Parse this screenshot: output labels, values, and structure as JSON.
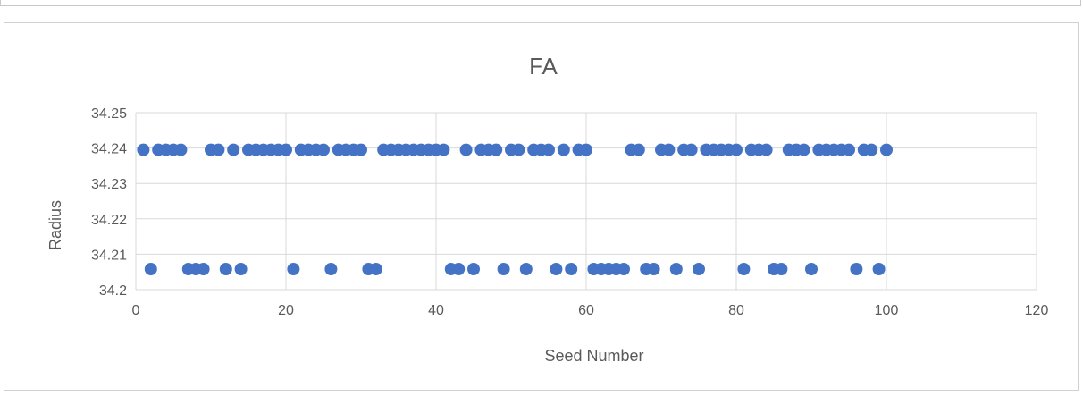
{
  "chart_data": {
    "type": "scatter",
    "title": "FA",
    "xlabel": "Seed Number",
    "ylabel": "Radius",
    "xlim": [
      0,
      120
    ],
    "ylim": [
      34.2,
      34.25
    ],
    "xticks": [
      0,
      20,
      40,
      60,
      80,
      100,
      120
    ],
    "yticks": [
      "34.2",
      "34.21",
      "34.22",
      "34.23",
      "34.24",
      "34.25"
    ],
    "grid": true,
    "legend": "none",
    "marker_color": "#4472C4",
    "series": [
      {
        "points": [
          [
            1,
            34.2395
          ],
          [
            2,
            34.2058
          ],
          [
            3,
            34.2395
          ],
          [
            4,
            34.2395
          ],
          [
            5,
            34.2395
          ],
          [
            6,
            34.2395
          ],
          [
            7,
            34.2058
          ],
          [
            8,
            34.2058
          ],
          [
            9,
            34.2058
          ],
          [
            10,
            34.2395
          ],
          [
            11,
            34.2395
          ],
          [
            12,
            34.2058
          ],
          [
            13,
            34.2395
          ],
          [
            14,
            34.2058
          ],
          [
            15,
            34.2395
          ],
          [
            16,
            34.2395
          ],
          [
            17,
            34.2395
          ],
          [
            18,
            34.2395
          ],
          [
            19,
            34.2395
          ],
          [
            20,
            34.2395
          ],
          [
            21,
            34.2058
          ],
          [
            22,
            34.2395
          ],
          [
            23,
            34.2395
          ],
          [
            24,
            34.2395
          ],
          [
            25,
            34.2395
          ],
          [
            26,
            34.2058
          ],
          [
            27,
            34.2395
          ],
          [
            28,
            34.2395
          ],
          [
            29,
            34.2395
          ],
          [
            30,
            34.2395
          ],
          [
            31,
            34.2058
          ],
          [
            32,
            34.2058
          ],
          [
            33,
            34.2395
          ],
          [
            34,
            34.2395
          ],
          [
            35,
            34.2395
          ],
          [
            36,
            34.2395
          ],
          [
            37,
            34.2395
          ],
          [
            38,
            34.2395
          ],
          [
            39,
            34.2395
          ],
          [
            40,
            34.2395
          ],
          [
            41,
            34.2395
          ],
          [
            42,
            34.2058
          ],
          [
            43,
            34.2058
          ],
          [
            44,
            34.2395
          ],
          [
            45,
            34.2058
          ],
          [
            46,
            34.2395
          ],
          [
            47,
            34.2395
          ],
          [
            48,
            34.2395
          ],
          [
            49,
            34.2058
          ],
          [
            50,
            34.2395
          ],
          [
            51,
            34.2395
          ],
          [
            52,
            34.2058
          ],
          [
            53,
            34.2395
          ],
          [
            54,
            34.2395
          ],
          [
            55,
            34.2395
          ],
          [
            56,
            34.2058
          ],
          [
            57,
            34.2395
          ],
          [
            58,
            34.2058
          ],
          [
            59,
            34.2395
          ],
          [
            60,
            34.2395
          ],
          [
            61,
            34.2058
          ],
          [
            62,
            34.2058
          ],
          [
            63,
            34.2058
          ],
          [
            64,
            34.2058
          ],
          [
            65,
            34.2058
          ],
          [
            66,
            34.2395
          ],
          [
            67,
            34.2395
          ],
          [
            68,
            34.2058
          ],
          [
            69,
            34.2058
          ],
          [
            70,
            34.2395
          ],
          [
            71,
            34.2395
          ],
          [
            72,
            34.2058
          ],
          [
            73,
            34.2395
          ],
          [
            74,
            34.2395
          ],
          [
            75,
            34.2058
          ],
          [
            76,
            34.2395
          ],
          [
            77,
            34.2395
          ],
          [
            78,
            34.2395
          ],
          [
            79,
            34.2395
          ],
          [
            80,
            34.2395
          ],
          [
            81,
            34.2058
          ],
          [
            82,
            34.2395
          ],
          [
            83,
            34.2395
          ],
          [
            84,
            34.2395
          ],
          [
            85,
            34.2058
          ],
          [
            86,
            34.2058
          ],
          [
            87,
            34.2395
          ],
          [
            88,
            34.2395
          ],
          [
            89,
            34.2395
          ],
          [
            90,
            34.2058
          ],
          [
            91,
            34.2395
          ],
          [
            92,
            34.2395
          ],
          [
            93,
            34.2395
          ],
          [
            94,
            34.2395
          ],
          [
            95,
            34.2395
          ],
          [
            96,
            34.2058
          ],
          [
            97,
            34.2395
          ],
          [
            98,
            34.2395
          ],
          [
            99,
            34.2058
          ],
          [
            100,
            34.2395
          ]
        ]
      }
    ]
  }
}
